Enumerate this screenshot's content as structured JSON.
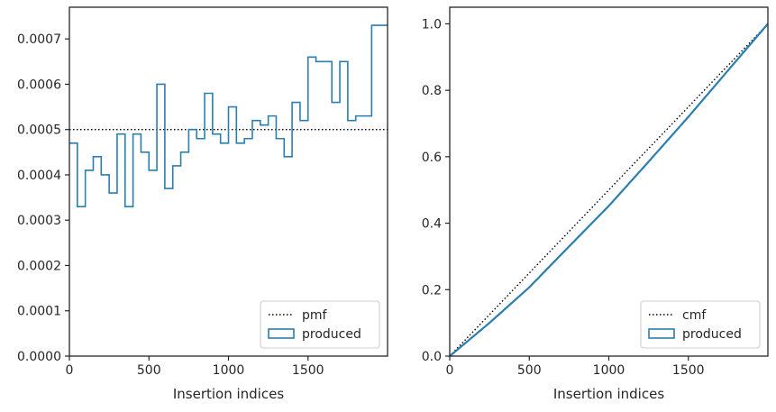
{
  "chart_data": [
    {
      "type": "histogram-step",
      "xlabel": "Insertion indices",
      "ylabel": "",
      "xlim": [
        0,
        2000
      ],
      "ylim": [
        0,
        0.00077
      ],
      "xticks": [
        0,
        500,
        1000,
        1500
      ],
      "xtick_labels": [
        "0",
        "500",
        "1000",
        "1500"
      ],
      "yticks": [
        0,
        0.0001,
        0.0002,
        0.0003,
        0.0004,
        0.0005,
        0.0006,
        0.0007
      ],
      "ytick_labels": [
        "0.0000",
        "0.0001",
        "0.0002",
        "0.0003",
        "0.0004",
        "0.0005",
        "0.0006",
        "0.0007"
      ],
      "grid": false,
      "legend": {
        "position": "lower-right",
        "entries": [
          "pmf",
          "produced"
        ]
      },
      "series": [
        {
          "name": "pmf",
          "style": "dotted",
          "color": "#000000",
          "x": [
            0,
            2000
          ],
          "y": [
            0.0005,
            0.0005
          ]
        },
        {
          "name": "produced",
          "style": "step",
          "color": "#2a7fb0",
          "bin_edges": [
            0,
            50,
            100,
            150,
            200,
            250,
            300,
            350,
            400,
            450,
            500,
            550,
            600,
            650,
            700,
            750,
            800,
            850,
            900,
            950,
            1000,
            1050,
            1100,
            1150,
            1200,
            1250,
            1300,
            1350,
            1400,
            1450,
            1500,
            1550,
            1600,
            1650,
            1700,
            1750,
            1800,
            1850,
            1900,
            1950,
            2000
          ],
          "values": [
            0.00047,
            0.00033,
            0.00041,
            0.00044,
            0.0004,
            0.00036,
            0.00049,
            0.00033,
            0.00049,
            0.00045,
            0.00041,
            0.0006,
            0.00037,
            0.00042,
            0.00045,
            0.0005,
            0.00048,
            0.00058,
            0.00049,
            0.00047,
            0.00055,
            0.00047,
            0.00048,
            0.00052,
            0.00051,
            0.00053,
            0.00048,
            0.00044,
            0.00056,
            0.00052,
            0.00066,
            0.00065,
            0.00065,
            0.00056,
            0.00065,
            0.00052,
            0.00053,
            0.00053,
            0.00073,
            0.00073
          ]
        }
      ]
    },
    {
      "type": "line",
      "xlabel": "Insertion indices",
      "ylabel": "",
      "xlim": [
        0,
        2000
      ],
      "ylim": [
        0,
        1.05
      ],
      "xticks": [
        0,
        500,
        1000,
        1500
      ],
      "xtick_labels": [
        "0",
        "500",
        "1000",
        "1500"
      ],
      "yticks": [
        0,
        0.2,
        0.4,
        0.6,
        0.8,
        1.0
      ],
      "ytick_labels": [
        "0.0",
        "0.2",
        "0.4",
        "0.6",
        "0.8",
        "1.0"
      ],
      "grid": false,
      "legend": {
        "position": "lower-right",
        "entries": [
          "cmf",
          "produced"
        ]
      },
      "series": [
        {
          "name": "cmf",
          "style": "dotted",
          "color": "#000000",
          "x": [
            0,
            2000
          ],
          "y": [
            0,
            1.0
          ]
        },
        {
          "name": "produced",
          "style": "step",
          "color": "#2a7fb0",
          "x": [
            0,
            250,
            500,
            750,
            1000,
            1250,
            1500,
            1750,
            2000
          ],
          "y": [
            0,
            0.1,
            0.207,
            0.33,
            0.452,
            0.585,
            0.72,
            0.86,
            1.0
          ]
        }
      ]
    }
  ]
}
